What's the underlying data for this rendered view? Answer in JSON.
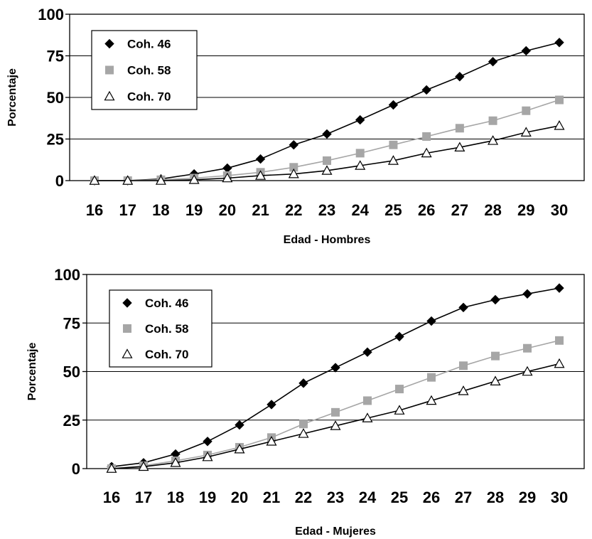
{
  "chart_data": [
    {
      "type": "line",
      "title": "",
      "xlabel": "Edad - Hombres",
      "ylabel": "Porcentaje",
      "ylim": [
        0,
        100
      ],
      "yticks": [
        0,
        25,
        50,
        75,
        100
      ],
      "categories": [
        "16",
        "17",
        "18",
        "19",
        "20",
        "21",
        "22",
        "23",
        "24",
        "25",
        "26",
        "27",
        "28",
        "29",
        "30"
      ],
      "grid": true,
      "legend_position": "top-left",
      "series": [
        {
          "name": "Coh. 46",
          "marker": "diamond",
          "color": "#000000",
          "values": [
            0,
            0,
            1,
            4,
            7.5,
            13,
            21.5,
            28,
            36.5,
            45.5,
            54.5,
            62.5,
            71.5,
            78,
            83
          ]
        },
        {
          "name": "Coh. 58",
          "marker": "square",
          "color": "#a6a6a6",
          "values": [
            0,
            0,
            0.5,
            1.5,
            3,
            5,
            8,
            12,
            16.5,
            21.5,
            26.5,
            31.5,
            36,
            42,
            48.5
          ]
        },
        {
          "name": "Coh. 70",
          "marker": "triangle",
          "color": "#000000",
          "values": [
            0,
            0,
            0,
            0.5,
            1.5,
            3,
            4,
            6,
            9,
            12,
            16.5,
            20,
            24,
            29,
            33
          ]
        }
      ]
    },
    {
      "type": "line",
      "title": "",
      "xlabel": "Edad - Mujeres",
      "ylabel": "Porcentaje",
      "ylim": [
        0,
        100
      ],
      "yticks": [
        0,
        25,
        50,
        75,
        100
      ],
      "categories": [
        "16",
        "17",
        "18",
        "19",
        "20",
        "21",
        "22",
        "23",
        "24",
        "25",
        "26",
        "27",
        "28",
        "29",
        "30"
      ],
      "grid": true,
      "legend_position": "top-left",
      "series": [
        {
          "name": "Coh. 46",
          "marker": "diamond",
          "color": "#000000",
          "values": [
            1,
            3,
            7.5,
            14,
            22.5,
            33,
            44,
            52,
            60,
            68,
            76,
            83,
            87,
            90,
            93
          ]
        },
        {
          "name": "Coh. 58",
          "marker": "square",
          "color": "#a6a6a6",
          "values": [
            0,
            1.5,
            4,
            7,
            11,
            16,
            23,
            29,
            35,
            41,
            47,
            53,
            58,
            62,
            66
          ]
        },
        {
          "name": "Coh. 70",
          "marker": "triangle",
          "color": "#000000",
          "values": [
            0,
            1,
            3,
            6,
            10,
            14,
            18,
            22,
            26,
            30,
            35,
            40,
            45,
            50,
            54
          ]
        }
      ]
    }
  ]
}
